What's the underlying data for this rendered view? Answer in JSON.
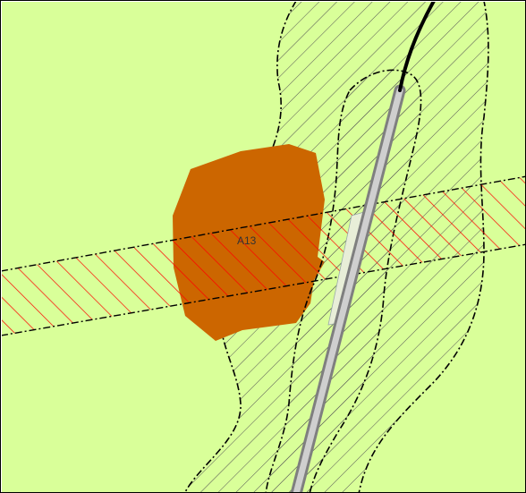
{
  "map": {
    "labels": {
      "parcel_label": "A13"
    },
    "colors": {
      "background": "#d9ff99",
      "orange_area": "#cc6600",
      "red_hatch": "#ff0000",
      "black_hatch": "#555555",
      "road_outer": "#7f7f7f",
      "road_inner": "#cfcfcf",
      "road_light": "#e8eed8",
      "boundary_line": "#000000"
    }
  }
}
